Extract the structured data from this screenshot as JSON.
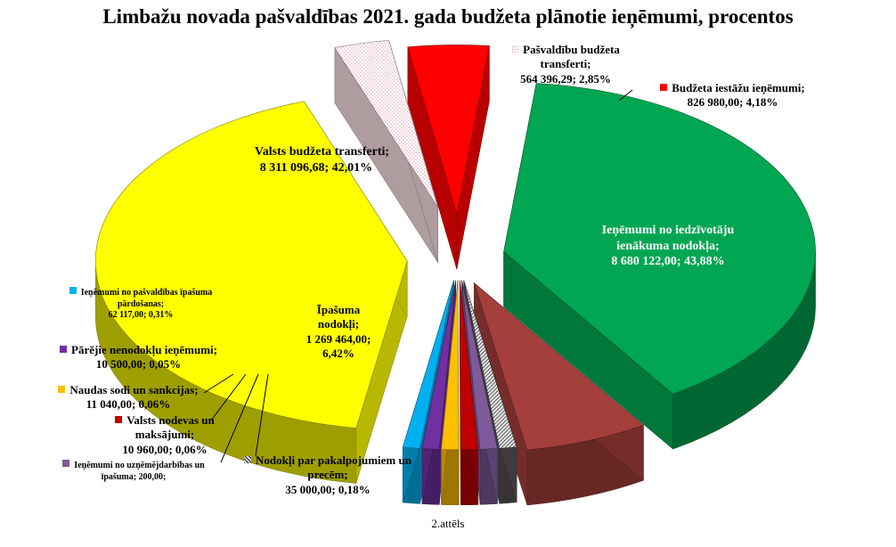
{
  "title": "Limbažu novada pašvaldības 2021. gada budžeta plānotie ieņēmumi, procentos",
  "caption": "2.attēls",
  "chart_data": {
    "type": "pie",
    "style": "3d-exploded",
    "title": "Limbažu novada pašvaldības 2021. gada budžeta plānotie ieņēmumi, procentos",
    "slices": [
      {
        "id": "iin",
        "label_lines": [
          "Ieņēmumi no iedzīvotāju",
          "ienākuma nodokļa;",
          "8 680 122,00; 43,88%"
        ],
        "value": 8680122.0,
        "percent": 43.88,
        "color": "#00a651"
      },
      {
        "id": "ipas",
        "label_lines": [
          "Īpašuma",
          "nodokļi;",
          "1 269 464,00;",
          "6,42%"
        ],
        "value": 1269464.0,
        "percent": 6.42,
        "color": "#a43f3b"
      },
      {
        "id": "prec",
        "label_lines": [
          "Nodokļi par pakalpojumiem un",
          "precēm;",
          "35 000,00; 0,18%"
        ],
        "value": 35000.0,
        "percent": 0.18,
        "color": "#555555"
      },
      {
        "id": "uzn",
        "label_lines": [
          "Ieņēmumi no uzņēmējdarbības un",
          "īpašuma; 200,00;"
        ],
        "value": 200.0,
        "percent": 0.0,
        "color": "#7e5a9b"
      },
      {
        "id": "vnod",
        "label_lines": [
          "Valsts nodevas un",
          "maksājumi;",
          "10 960,00; 0,06%"
        ],
        "value": 10960.0,
        "percent": 0.06,
        "color": "#c00000"
      },
      {
        "id": "sodi",
        "label_lines": [
          "Naudas sodi un sankcijas;",
          "11 040,00; 0,06%"
        ],
        "value": 11040.0,
        "percent": 0.06,
        "color": "#ffc000"
      },
      {
        "id": "parej",
        "label_lines": [
          "Pārējie nenodokļu ieņēmumi;",
          "10 500,00; 0,05%"
        ],
        "value": 10500.0,
        "percent": 0.05,
        "color": "#7030a0"
      },
      {
        "id": "pard",
        "label_lines": [
          "Ieņēmumi no pašvaldības īpašuma",
          "pārdošanas;",
          "62 117,00; 0,31%"
        ],
        "value": 62117.0,
        "percent": 0.31,
        "color": "#00b0f0"
      },
      {
        "id": "vbt",
        "label_lines": [
          "Valsts budžeta transferti;",
          "8 311 096,68; 42,01%"
        ],
        "value": 8311096.68,
        "percent": 42.01,
        "color": "#ffff00"
      },
      {
        "id": "pbt",
        "label_lines": [
          "Pašvaldību budžeta",
          "transferti;",
          "564 396,29; 2,85%"
        ],
        "value": 564396.29,
        "percent": 2.85,
        "color": "#f2d9dc"
      },
      {
        "id": "bii",
        "label_lines": [
          "Budžeta iestāžu ieņēmumi;",
          "826 980,00; 4,18%"
        ],
        "value": 826980.0,
        "percent": 4.18,
        "color": "#ff0000"
      }
    ]
  }
}
